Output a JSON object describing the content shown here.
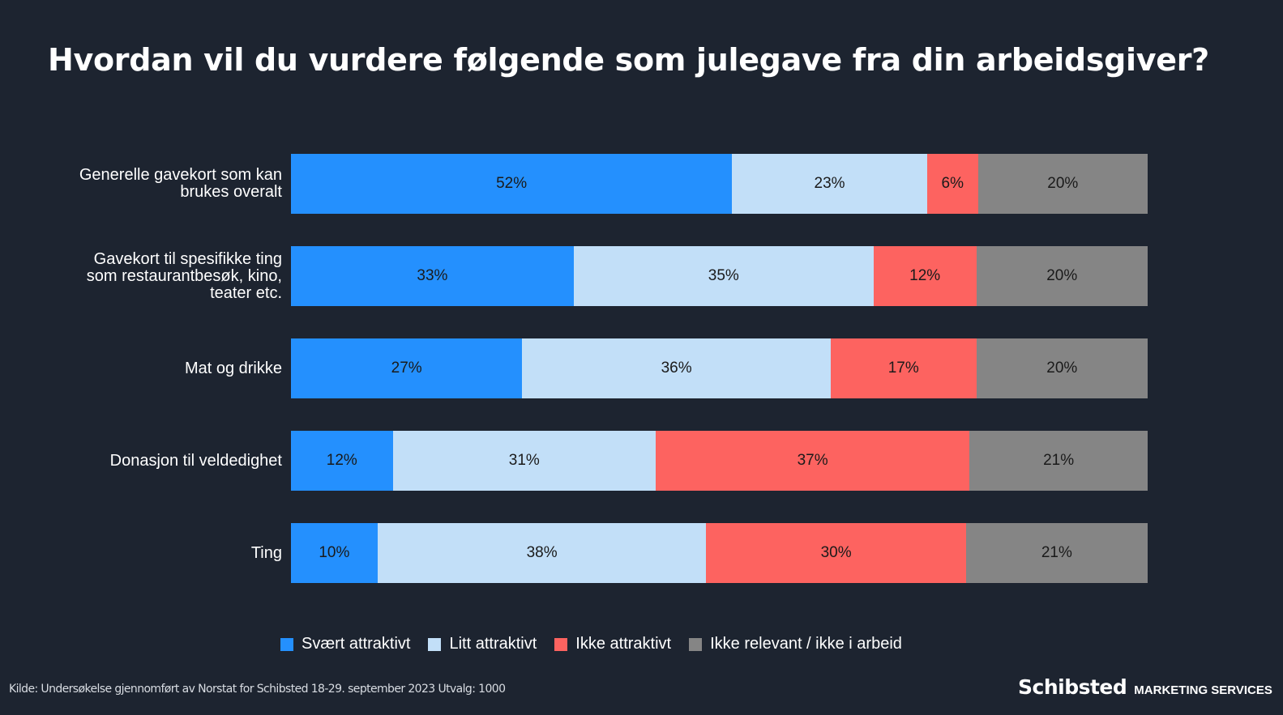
{
  "chart_data": {
    "type": "bar",
    "orientation": "horizontal",
    "stacked": true,
    "title": "Hvordan vil du vurdere følgende som julegave fra din arbeidsgiver?",
    "categories": [
      [
        "Generelle gavekort som kan",
        "brukes overalt"
      ],
      [
        "Gavekort til spesifikke ting",
        "som restaurantbesøk, kino,",
        "teater etc."
      ],
      [
        "Mat og drikke"
      ],
      [
        "Donasjon til veldedighet"
      ],
      [
        "Ting"
      ]
    ],
    "series": [
      {
        "name": "Svært attraktivt",
        "color": "#2490fe",
        "values": [
          52,
          33,
          27,
          12,
          10
        ]
      },
      {
        "name": "Litt attraktivt",
        "color": "#c2dff8",
        "values": [
          23,
          35,
          36,
          31,
          38
        ]
      },
      {
        "name": "Ikke attraktivt",
        "color": "#fd6360",
        "values": [
          6,
          12,
          17,
          37,
          30
        ]
      },
      {
        "name": "Ikke relevant / ikke i arbeid",
        "color": "#858585",
        "values": [
          20,
          20,
          20,
          21,
          21
        ]
      }
    ],
    "value_format": "percent",
    "legend": "bottom",
    "grid": false
  },
  "footer": {
    "source": "Kilde: Undersøkelse gjennomført av Norstat for Schibsted  18-29. september  2023 Utvalg: 1000",
    "logo_main": "Schibsted",
    "logo_sub": "MARKETING SERVICES"
  }
}
